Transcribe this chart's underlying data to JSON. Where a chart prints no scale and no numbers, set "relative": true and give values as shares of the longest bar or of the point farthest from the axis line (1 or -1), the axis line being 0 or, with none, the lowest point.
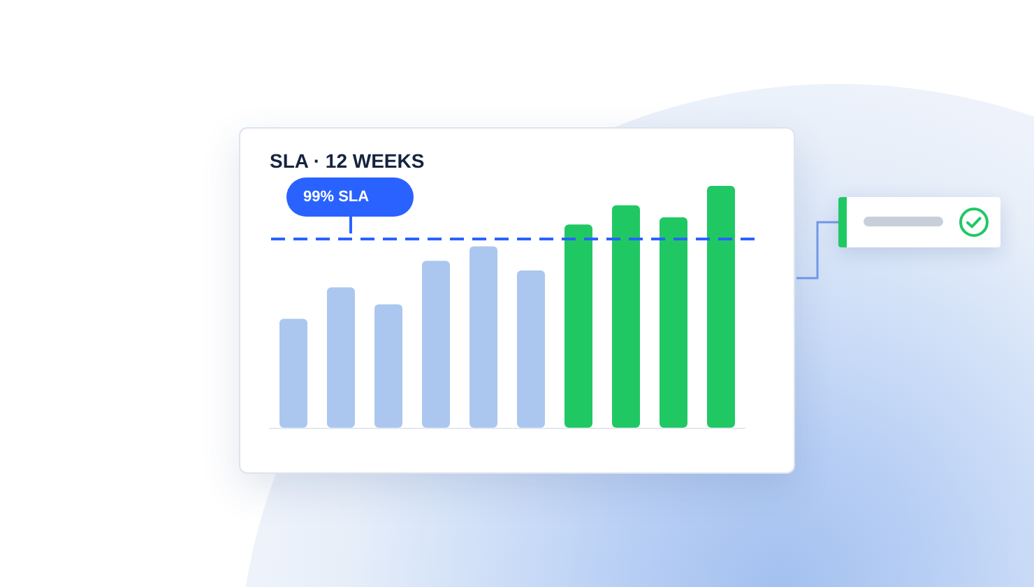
{
  "chart_data": {
    "type": "bar",
    "title": "SLA · 12 WEEKS",
    "categories": [
      null,
      null,
      null,
      null,
      null,
      null,
      null,
      null,
      null,
      null
    ],
    "values": [
      0.45,
      0.58,
      0.51,
      0.69,
      0.75,
      0.65,
      0.84,
      0.92,
      0.87,
      1
    ],
    "colors": [
      "#abc7f0",
      "#abc7f0",
      "#abc7f0",
      "#abc7f0",
      "#abc7f0",
      "#abc7f0",
      "#20c864",
      "#20c864",
      "#20c864",
      "#20c864"
    ],
    "relative": true,
    "ref_lines": [
      {
        "axis": "y",
        "value": 0.78,
        "label": "99% SLA",
        "color": "#2962ff",
        "line_style": "dashed"
      }
    ]
  }
}
